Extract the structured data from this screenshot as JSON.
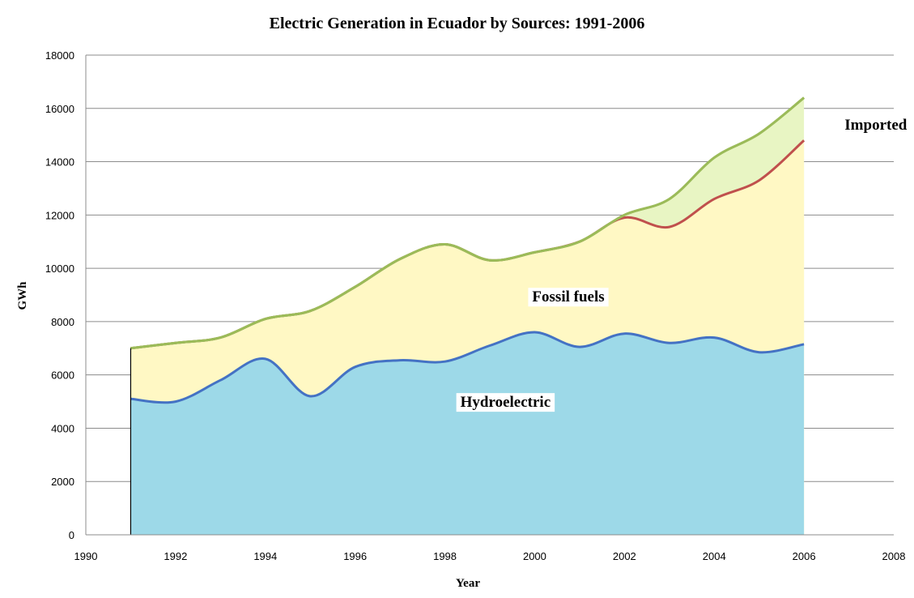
{
  "chart_data": {
    "type": "area",
    "title": "Electric Generation in Ecuador by Sources: 1991-2006",
    "xlabel": "Year",
    "ylabel": "GWh",
    "xlim": [
      1990,
      2008
    ],
    "ylim": [
      0,
      18000
    ],
    "x_ticks": [
      "1990",
      "1992",
      "1994",
      "1996",
      "1998",
      "2000",
      "2002",
      "2004",
      "2006",
      "2008"
    ],
    "y_ticks": [
      "0",
      "2000",
      "4000",
      "6000",
      "8000",
      "10000",
      "12000",
      "14000",
      "16000",
      "18000"
    ],
    "grid": "horizontal",
    "stacked": true,
    "x": [
      1991,
      1992,
      1993,
      1994,
      1995,
      1996,
      1997,
      1998,
      1999,
      2000,
      2001,
      2002,
      2003,
      2004,
      2005,
      2006
    ],
    "series": [
      {
        "name": "Hydroelectric",
        "color": "#4472c4",
        "fill": "#9dd9e8",
        "values": [
          5100,
          5000,
          5800,
          6600,
          5200,
          6300,
          6550,
          6500,
          7100,
          7600,
          7050,
          7550,
          7200,
          7400,
          6850,
          7150
        ]
      },
      {
        "name": "Fossil fuels",
        "color": "#c0504d",
        "fill": "#fff8c4",
        "values": [
          1900,
          2200,
          1600,
          1500,
          3200,
          3000,
          3800,
          4400,
          3200,
          3000,
          3950,
          4350,
          4350,
          5200,
          6450,
          7650
        ]
      },
      {
        "name": "Imported",
        "color": "#9bbb59",
        "fill": "#e8f5c3",
        "values": [
          0,
          0,
          0,
          0,
          0,
          0,
          0,
          0,
          0,
          0,
          0,
          100,
          1050,
          1550,
          1750,
          1600
        ]
      }
    ]
  }
}
